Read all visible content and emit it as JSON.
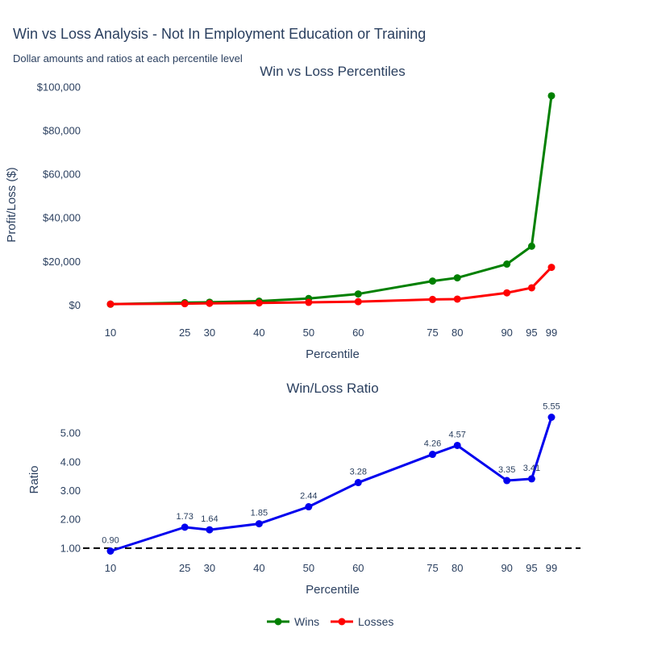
{
  "title": "Win vs Loss Analysis - Not In Employment Education or Training",
  "subtitle": "Dollar amounts and ratios at each percentile level",
  "colors": {
    "wins": "#008000",
    "losses": "#ff0000",
    "ratio": "#0000ee",
    "text": "#2a3f5f",
    "reference": "#000000"
  },
  "chart_data": [
    {
      "type": "line",
      "title": "Win vs Loss Percentiles",
      "xlabel": "Percentile",
      "ylabel": "Profit/Loss ($)",
      "x": [
        10,
        25,
        30,
        40,
        50,
        60,
        75,
        80,
        90,
        95,
        99
      ],
      "xlim": [
        10,
        99
      ],
      "ylim": [
        -8000,
        100000
      ],
      "y_ticks": [
        0,
        20000,
        40000,
        60000,
        80000,
        100000
      ],
      "y_tick_labels": [
        "$0",
        "$20,000",
        "$40,000",
        "$60,000",
        "$80,000",
        "$100,000"
      ],
      "series": [
        {
          "name": "Wins",
          "color": "#008000",
          "values": [
            400,
            1100,
            1300,
            1800,
            3000,
            5100,
            11000,
            12500,
            18800,
            27000,
            96000
          ]
        },
        {
          "name": "Losses",
          "color": "#ff0000",
          "values": [
            450,
            640,
            790,
            970,
            1230,
            1550,
            2580,
            2740,
            5610,
            7920,
            17300
          ]
        }
      ]
    },
    {
      "type": "line",
      "title": "Win/Loss Ratio",
      "xlabel": "Percentile",
      "ylabel": "Ratio",
      "x": [
        10,
        25,
        30,
        40,
        50,
        60,
        75,
        80,
        90,
        95,
        99
      ],
      "xlim": [
        10,
        99
      ],
      "ylim": [
        0.55,
        5.9
      ],
      "y_ticks": [
        1,
        2,
        3,
        4,
        5
      ],
      "y_tick_labels": [
        "1.00",
        "2.00",
        "3.00",
        "4.00",
        "5.00"
      ],
      "series": [
        {
          "name": "Win/Loss Ratio",
          "color": "#0000ee",
          "values": [
            0.9,
            1.73,
            1.64,
            1.85,
            2.44,
            3.28,
            4.26,
            4.57,
            3.35,
            3.41,
            5.55
          ],
          "labels": [
            "0.90",
            "1.73",
            "1.64",
            "1.85",
            "2.44",
            "3.28",
            "4.26",
            "4.57",
            "3.35",
            "3.41",
            "5.55"
          ]
        }
      ],
      "reference_line": {
        "y": 1.0,
        "style": "dashed"
      }
    }
  ],
  "legend": {
    "placement": "bottom-center",
    "items": [
      {
        "name": "Wins",
        "color": "#008000"
      },
      {
        "name": "Losses",
        "color": "#ff0000"
      }
    ]
  }
}
